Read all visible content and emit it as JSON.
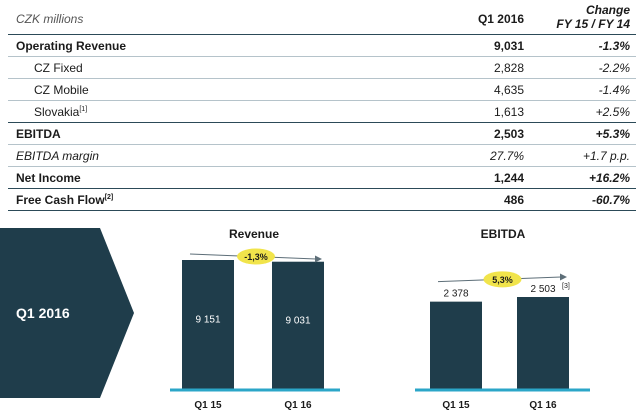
{
  "table": {
    "unit_label": "CZK millions",
    "col_period": "Q1 2016",
    "col_change_line1": "Change",
    "col_change_line2": "FY 15 / FY 14",
    "rows": [
      {
        "label": "Operating Revenue",
        "note": "",
        "value": "9,031",
        "change": "-1.3%"
      },
      {
        "label": "CZ Fixed",
        "note": "",
        "value": "2,828",
        "change": "-2.2%"
      },
      {
        "label": "CZ Mobile",
        "note": "",
        "value": "4,635",
        "change": "-1.4%"
      },
      {
        "label": "Slovakia",
        "note": "[1]",
        "value": "1,613",
        "change": "+2.5%"
      },
      {
        "label": "EBITDA",
        "note": "",
        "value": "2,503",
        "change": "+5.3%"
      },
      {
        "label": "EBITDA margin",
        "note": "",
        "value": "27.7%",
        "change": "+1.7 p.p."
      },
      {
        "label": "Net Income",
        "note": "",
        "value": "1,244",
        "change": "+16.2%"
      },
      {
        "label": "Free Cash Flow",
        "note": "[2]",
        "value": "486",
        "change": "-60.7%"
      }
    ]
  },
  "banner": {
    "label": "Q1 2016"
  },
  "colors": {
    "navy": "#1f3d4b",
    "axis": "#2ba6c8",
    "badge": "#f1e44b"
  },
  "chart_data": [
    {
      "type": "bar",
      "title": "Revenue",
      "categories": [
        "Q1 15",
        "Q1 16"
      ],
      "values": [
        9151,
        9031
      ],
      "data_labels": [
        "9 151",
        "9 031"
      ],
      "change_label": "-1,3%",
      "ylim": [
        0,
        10000
      ]
    },
    {
      "type": "bar",
      "title": "EBITDA",
      "categories": [
        "Q1 15",
        "Q1 16"
      ],
      "values": [
        2378,
        2503
      ],
      "data_labels": [
        "2 378",
        "2 503"
      ],
      "footnote": "[3]",
      "change_label": "5,3%",
      "ylim": [
        0,
        3000
      ]
    }
  ]
}
